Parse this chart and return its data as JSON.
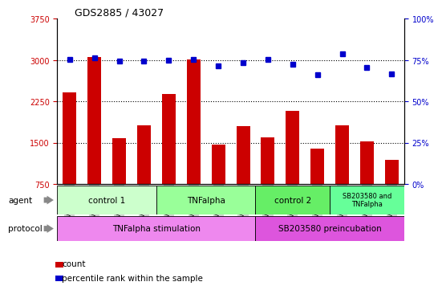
{
  "title": "GDS2885 / 43027",
  "samples": [
    "GSM189807",
    "GSM189809",
    "GSM189811",
    "GSM189813",
    "GSM189806",
    "GSM189808",
    "GSM189810",
    "GSM189812",
    "GSM189815",
    "GSM189817",
    "GSM189819",
    "GSM189814",
    "GSM189816",
    "GSM189818"
  ],
  "counts": [
    2420,
    3050,
    1580,
    1820,
    2390,
    3010,
    1460,
    1800,
    1590,
    2080,
    1390,
    1820,
    1520,
    1190
  ],
  "percentiles": [
    75.5,
    76.5,
    74.5,
    74.5,
    75.0,
    75.5,
    71.5,
    73.5,
    75.5,
    72.5,
    66.0,
    79.0,
    70.5,
    66.5
  ],
  "ylim_left": [
    750,
    3750
  ],
  "ylim_right": [
    0,
    100
  ],
  "yticks_left": [
    750,
    1500,
    2250,
    3000,
    3750
  ],
  "yticks_right": [
    0,
    25,
    50,
    75,
    100
  ],
  "bar_color": "#cc0000",
  "dot_color": "#0000cc",
  "agent_groups": [
    {
      "label": "control 1",
      "start": 0,
      "end": 4,
      "color": "#ccffcc"
    },
    {
      "label": "TNFalpha",
      "start": 4,
      "end": 8,
      "color": "#99ff99"
    },
    {
      "label": "control 2",
      "start": 8,
      "end": 11,
      "color": "#66ee66"
    },
    {
      "label": "SB203580 and\nTNFalpha",
      "start": 11,
      "end": 14,
      "color": "#66ff99"
    }
  ],
  "protocol_groups": [
    {
      "label": "TNFalpha stimulation",
      "start": 0,
      "end": 8,
      "color": "#ee88ee"
    },
    {
      "label": "SB203580 preincubation",
      "start": 8,
      "end": 14,
      "color": "#dd55dd"
    }
  ],
  "agent_label": "agent",
  "protocol_label": "protocol",
  "legend_count_label": "count",
  "legend_pct_label": "percentile rank within the sample",
  "dotted_lines": [
    1500,
    2250,
    3000
  ],
  "background_color": "#ffffff",
  "tick_label_color_left": "#cc0000",
  "tick_label_color_right": "#0000cc",
  "xticklabel_bg": "#d0d0d0"
}
